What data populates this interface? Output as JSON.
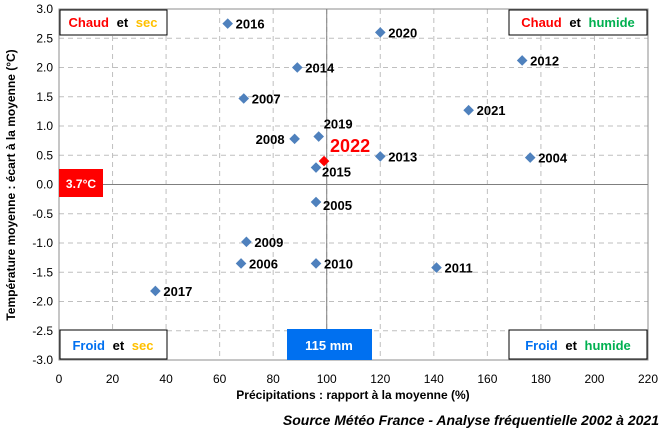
{
  "chart_data": {
    "type": "scatter",
    "xlabel": "Précipitations : rapport à la moyenne (%)",
    "ylabel": "Température moyenne : écart à la moyenne (°C)",
    "xlim": [
      0,
      220
    ],
    "ylim": [
      -3.0,
      3.0
    ],
    "xticks": [
      0,
      20,
      40,
      60,
      80,
      100,
      120,
      140,
      160,
      180,
      200,
      220
    ],
    "yticks": [
      "3.0",
      "2.5",
      "2.0",
      "1.5",
      "1.0",
      "0.5",
      "0.0",
      "-0.5",
      "-1.0",
      "-1.5",
      "-2.0",
      "-2.5",
      "-3.0"
    ],
    "grid": true,
    "reference_lines": {
      "x": 100,
      "y": 0
    },
    "marker_color": "#4f81bd",
    "highlight_color": "#ff0000",
    "points": [
      {
        "label": "2016",
        "x": 63,
        "y": 2.75
      },
      {
        "label": "2020",
        "x": 120,
        "y": 2.6
      },
      {
        "label": "2014",
        "x": 89,
        "y": 2.0
      },
      {
        "label": "2012",
        "x": 173,
        "y": 2.12
      },
      {
        "label": "2007",
        "x": 69,
        "y": 1.47
      },
      {
        "label": "2021",
        "x": 153,
        "y": 1.27
      },
      {
        "label": "2019",
        "x": 97,
        "y": 0.82
      },
      {
        "label": "2008",
        "x": 88,
        "y": 0.78
      },
      {
        "label": "2022",
        "x": 99,
        "y": 0.4,
        "highlight": true
      },
      {
        "label": "2015",
        "x": 96,
        "y": 0.29
      },
      {
        "label": "2013",
        "x": 120,
        "y": 0.48
      },
      {
        "label": "2004",
        "x": 176,
        "y": 0.46
      },
      {
        "label": "2005",
        "x": 96,
        "y": -0.3
      },
      {
        "label": "2009",
        "x": 70,
        "y": -0.98
      },
      {
        "label": "2006",
        "x": 68,
        "y": -1.35
      },
      {
        "label": "2010",
        "x": 96,
        "y": -1.35
      },
      {
        "label": "2011",
        "x": 141,
        "y": -1.42
      },
      {
        "label": "2017",
        "x": 36,
        "y": -1.82
      }
    ]
  },
  "annotations": {
    "temp_value": "3.7°C",
    "temp_color": "#ff0000",
    "precip_value": "115 mm",
    "precip_color": "#0070f0",
    "quadrants": {
      "top_left": {
        "word1": "Chaud",
        "word2": "et",
        "word3": "sec"
      },
      "top_right": {
        "word1": "Chaud",
        "word2": "et",
        "word3": "humide"
      },
      "bottom_left": {
        "word1": "Froid",
        "word2": "et",
        "word3": "sec"
      },
      "bottom_right": {
        "word1": "Froid",
        "word2": "et",
        "word3": "humide"
      }
    },
    "colors": {
      "chaud": "#ff0000",
      "froid": "#0070f0",
      "sec": "#ffc000",
      "humide": "#00b050",
      "et": "#000000"
    }
  },
  "source": "Source Météo France - Analyse fréquentielle 2002 à 2021"
}
